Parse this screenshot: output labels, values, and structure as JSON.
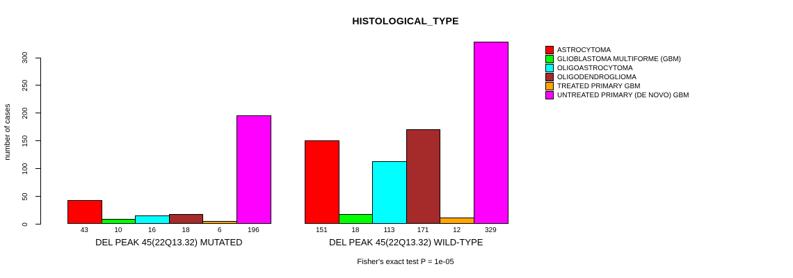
{
  "chart_data": {
    "type": "bar",
    "title": "HISTOLOGICAL_TYPE",
    "ylabel": "number of cases",
    "ylim": [
      0,
      330
    ],
    "yticks": [
      0,
      50,
      100,
      150,
      200,
      250,
      300
    ],
    "grid": false,
    "legend_position": "right",
    "legend": [
      {
        "label": "ASTROCYTOMA",
        "color": "#ff0000"
      },
      {
        "label": "GLIOBLASTOMA MULTIFORME (GBM)",
        "color": "#00ff00"
      },
      {
        "label": "OLIGOASTROCYTOMA",
        "color": "#00ffff"
      },
      {
        "label": "OLIGODENDROGLIOMA",
        "color": "#a52a2a"
      },
      {
        "label": "TREATED PRIMARY GBM",
        "color": "#ffa500"
      },
      {
        "label": "UNTREATED PRIMARY (DE NOVO) GBM",
        "color": "#ff00ff"
      }
    ],
    "groups": [
      {
        "label": "DEL PEAK 45(22Q13.32) MUTATED",
        "values": [
          43,
          10,
          16,
          18,
          6,
          196
        ]
      },
      {
        "label": "DEL PEAK 45(22Q13.32) WILD-TYPE",
        "values": [
          151,
          18,
          113,
          171,
          12,
          329
        ]
      }
    ],
    "annotation": "Fisher's exact test P = 1e-05"
  }
}
